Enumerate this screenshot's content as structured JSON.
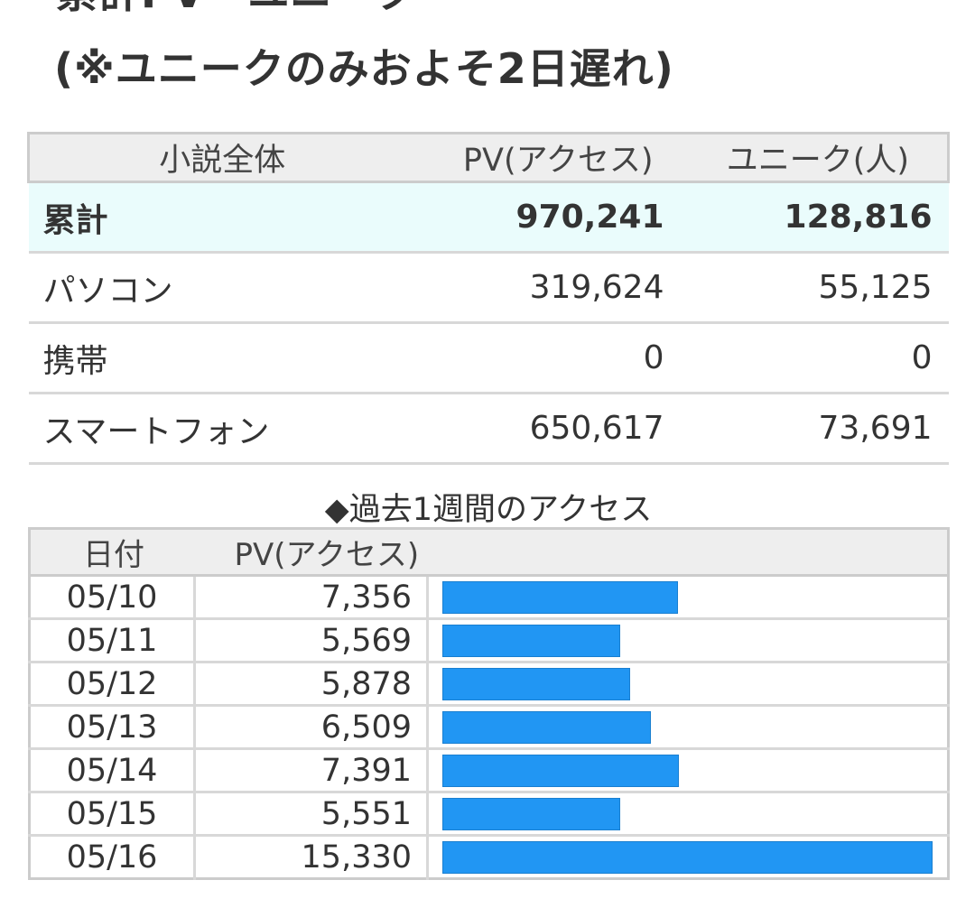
{
  "page": {
    "cut_heading": "累計PV・ユニーク",
    "heading": "(※ユニークのみおよそ2日遅れ)"
  },
  "summary": {
    "headers": [
      "小説全体",
      "PV(アクセス)",
      "ユニーク(人)"
    ],
    "rows": [
      {
        "label": "累計",
        "pv": "970,241",
        "unique": "128,816"
      },
      {
        "label": "パソコン",
        "pv": "319,624",
        "unique": "55,125"
      },
      {
        "label": "携帯",
        "pv": "0",
        "unique": "0"
      },
      {
        "label": "スマートフォン",
        "pv": "650,617",
        "unique": "73,691"
      }
    ]
  },
  "weekly": {
    "title": "◆過去1週間のアクセス",
    "headers": [
      "日付",
      "PV(アクセス)"
    ],
    "bar_color": "#2196f3",
    "rows": [
      {
        "date": "05/10",
        "pv_label": "7,356",
        "pv": 7356
      },
      {
        "date": "05/11",
        "pv_label": "5,569",
        "pv": 5569
      },
      {
        "date": "05/12",
        "pv_label": "5,878",
        "pv": 5878
      },
      {
        "date": "05/13",
        "pv_label": "6,509",
        "pv": 6509
      },
      {
        "date": "05/14",
        "pv_label": "7,391",
        "pv": 7391
      },
      {
        "date": "05/15",
        "pv_label": "5,551",
        "pv": 5551
      },
      {
        "date": "05/16",
        "pv_label": "15,330",
        "pv": 15330
      }
    ]
  }
}
